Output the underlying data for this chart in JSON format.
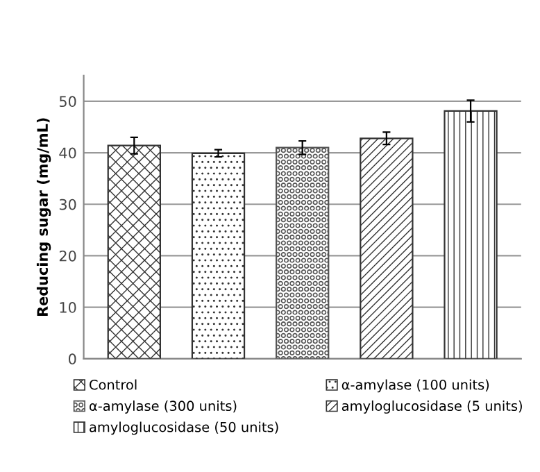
{
  "chart_data": {
    "type": "bar",
    "ylabel": "Reducing sugar (mg/mL)",
    "categories": [
      null,
      null,
      null,
      null,
      null
    ],
    "series": [
      {
        "name": "Control",
        "color": "#333333",
        "values": [
          41.4,
          null,
          null,
          null,
          null
        ],
        "errors": [
          1.6,
          null,
          null,
          null,
          null
        ]
      },
      {
        "name": "α-amylase (100 units)",
        "color": "#333333",
        "values": [
          null,
          39.9,
          null,
          null,
          null
        ],
        "errors": [
          null,
          0.7,
          null,
          null,
          null
        ]
      },
      {
        "name": "α-amylase (300 units)",
        "color": "#555555",
        "values": [
          null,
          null,
          41.0,
          null,
          null
        ],
        "errors": [
          null,
          null,
          1.3,
          null,
          null
        ]
      },
      {
        "name": "amyloglucosidase (5 units)",
        "color": "#333333",
        "values": [
          null,
          null,
          null,
          42.8,
          null
        ],
        "errors": [
          null,
          null,
          null,
          1.2,
          null
        ]
      },
      {
        "name": "amyloglucosidase (50 units)",
        "color": "#333333",
        "values": [
          null,
          null,
          null,
          null,
          48.1
        ],
        "errors": [
          null,
          null,
          null,
          null,
          2.1
        ]
      }
    ],
    "ylim": [
      0,
      55
    ],
    "yticks": [
      0,
      10,
      20,
      30,
      40,
      50
    ],
    "grid": "y",
    "legend": "bottom"
  }
}
